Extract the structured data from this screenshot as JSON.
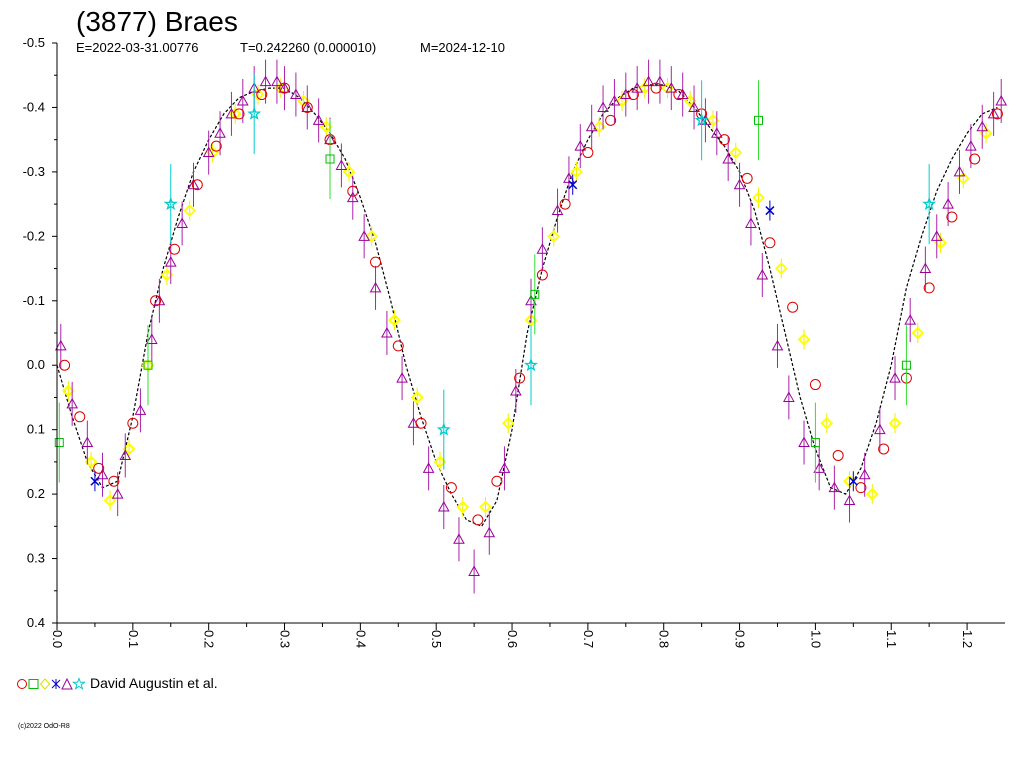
{
  "chart_data": {
    "type": "scatter",
    "title": "(3877) Braes",
    "epoch_text": "E=2022-03-31.00776",
    "period_text": "T=0.242260 (0.000010)",
    "modified_text": "M=2024-12-10",
    "xlim": [
      0.0,
      1.25
    ],
    "ylim": [
      0.4,
      -0.5
    ],
    "y_inverted": true,
    "x_ticks": [
      "0.0",
      "0.1",
      "0.2",
      "0.3",
      "0.4",
      "0.5",
      "0.6",
      "0.7",
      "0.8",
      "0.9",
      "1.0",
      "1.1",
      "1.2"
    ],
    "y_ticks": [
      "-0.5",
      "-0.4",
      "-0.3",
      "-0.2",
      "-0.1",
      "0.0",
      "0.1",
      "0.2",
      "0.3",
      "0.4"
    ],
    "legend_label": "David Augustin et al.",
    "copyright": "(c)2022 OdO-R8",
    "fit_curve": {
      "x": [
        0.0,
        0.02,
        0.04,
        0.06,
        0.08,
        0.1,
        0.12,
        0.14,
        0.16,
        0.18,
        0.2,
        0.22,
        0.24,
        0.26,
        0.28,
        0.3,
        0.32,
        0.34,
        0.36,
        0.38,
        0.4,
        0.42,
        0.44,
        0.46,
        0.48,
        0.5,
        0.52,
        0.54,
        0.56,
        0.58,
        0.6,
        0.62,
        0.64,
        0.66,
        0.68,
        0.7,
        0.72,
        0.74,
        0.76,
        0.78,
        0.8,
        0.82,
        0.84,
        0.86,
        0.88,
        0.9,
        0.92,
        0.94,
        0.96,
        0.98,
        1.0,
        1.02,
        1.04,
        1.06,
        1.08,
        1.1,
        1.12,
        1.14,
        1.16,
        1.18,
        1.2,
        1.22,
        1.24
      ],
      "y": [
        0.0,
        0.08,
        0.15,
        0.19,
        0.18,
        0.08,
        -0.05,
        -0.15,
        -0.23,
        -0.3,
        -0.35,
        -0.39,
        -0.415,
        -0.425,
        -0.43,
        -0.43,
        -0.415,
        -0.39,
        -0.36,
        -0.32,
        -0.26,
        -0.19,
        -0.1,
        0.0,
        0.08,
        0.15,
        0.2,
        0.24,
        0.25,
        0.21,
        0.1,
        -0.05,
        -0.15,
        -0.23,
        -0.3,
        -0.35,
        -0.39,
        -0.415,
        -0.43,
        -0.435,
        -0.435,
        -0.425,
        -0.4,
        -0.37,
        -0.34,
        -0.3,
        -0.24,
        -0.15,
        -0.05,
        0.05,
        0.13,
        0.19,
        0.2,
        0.16,
        0.09,
        0.0,
        -0.12,
        -0.2,
        -0.27,
        -0.32,
        -0.36,
        -0.39,
        -0.4
      ]
    },
    "series": [
      {
        "marker": "triangle",
        "color": "#990099",
        "x": [
          0.005,
          0.02,
          0.04,
          0.06,
          0.08,
          0.09,
          0.11,
          0.125,
          0.135,
          0.15,
          0.165,
          0.18,
          0.2,
          0.215,
          0.23,
          0.245,
          0.26,
          0.275,
          0.29,
          0.3,
          0.315,
          0.33,
          0.345,
          0.36,
          0.375,
          0.39,
          0.405,
          0.42,
          0.435,
          0.455,
          0.47,
          0.49,
          0.51,
          0.53,
          0.55,
          0.57,
          0.59,
          0.605,
          0.625,
          0.64,
          0.66,
          0.675,
          0.69,
          0.705,
          0.72,
          0.735,
          0.75,
          0.765,
          0.78,
          0.795,
          0.81,
          0.825,
          0.84,
          0.855,
          0.87,
          0.885,
          0.9,
          0.915,
          0.93,
          0.95,
          0.965,
          0.985,
          1.005,
          1.025,
          1.045,
          1.065,
          1.085,
          1.105,
          1.125,
          1.145,
          1.16,
          1.175,
          1.19,
          1.205,
          1.22,
          1.235,
          1.245
        ],
        "y": [
          -0.03,
          0.06,
          0.12,
          0.17,
          0.2,
          0.14,
          0.07,
          -0.04,
          -0.1,
          -0.16,
          -0.22,
          -0.28,
          -0.33,
          -0.36,
          -0.39,
          -0.41,
          -0.43,
          -0.44,
          -0.44,
          -0.43,
          -0.42,
          -0.4,
          -0.38,
          -0.35,
          -0.31,
          -0.26,
          -0.2,
          -0.12,
          -0.05,
          0.02,
          0.09,
          0.16,
          0.22,
          0.27,
          0.32,
          0.26,
          0.16,
          0.04,
          -0.1,
          -0.18,
          -0.24,
          -0.29,
          -0.34,
          -0.37,
          -0.4,
          -0.41,
          -0.42,
          -0.43,
          -0.44,
          -0.44,
          -0.43,
          -0.42,
          -0.4,
          -0.38,
          -0.36,
          -0.32,
          -0.28,
          -0.22,
          -0.14,
          -0.03,
          0.05,
          0.12,
          0.16,
          0.19,
          0.21,
          0.17,
          0.1,
          0.02,
          -0.07,
          -0.15,
          -0.2,
          -0.25,
          -0.3,
          -0.34,
          -0.37,
          -0.39,
          -0.41
        ]
      },
      {
        "marker": "circle",
        "color": "#dd0000",
        "x": [
          0.01,
          0.03,
          0.055,
          0.075,
          0.1,
          0.13,
          0.155,
          0.185,
          0.21,
          0.24,
          0.27,
          0.3,
          0.33,
          0.36,
          0.39,
          0.42,
          0.45,
          0.48,
          0.52,
          0.555,
          0.58,
          0.61,
          0.64,
          0.67,
          0.7,
          0.73,
          0.76,
          0.79,
          0.82,
          0.85,
          0.88,
          0.91,
          0.94,
          0.97,
          1.0,
          1.03,
          1.06,
          1.09,
          1.12,
          1.15,
          1.18,
          1.21,
          1.24
        ],
        "y": [
          0.0,
          0.08,
          0.16,
          0.18,
          0.09,
          -0.1,
          -0.18,
          -0.28,
          -0.34,
          -0.39,
          -0.42,
          -0.43,
          -0.4,
          -0.35,
          -0.27,
          -0.16,
          -0.03,
          0.09,
          0.19,
          0.24,
          0.18,
          0.02,
          -0.14,
          -0.25,
          -0.33,
          -0.38,
          -0.42,
          -0.43,
          -0.42,
          -0.39,
          -0.35,
          -0.29,
          -0.19,
          -0.09,
          0.03,
          0.14,
          0.19,
          0.13,
          0.02,
          -0.12,
          -0.23,
          -0.32,
          -0.39
        ]
      },
      {
        "marker": "diamond",
        "color": "#ffff00",
        "x": [
          0.015,
          0.045,
          0.07,
          0.095,
          0.12,
          0.145,
          0.175,
          0.205,
          0.235,
          0.265,
          0.295,
          0.325,
          0.355,
          0.385,
          0.415,
          0.445,
          0.475,
          0.505,
          0.535,
          0.565,
          0.595,
          0.625,
          0.655,
          0.685,
          0.715,
          0.745,
          0.775,
          0.805,
          0.835,
          0.865,
          0.895,
          0.925,
          0.955,
          0.985,
          1.015,
          1.045,
          1.075,
          1.105,
          1.135,
          1.165,
          1.195,
          1.225
        ],
        "y": [
          0.04,
          0.15,
          0.21,
          0.13,
          0.0,
          -0.14,
          -0.24,
          -0.33,
          -0.39,
          -0.42,
          -0.43,
          -0.41,
          -0.37,
          -0.3,
          -0.2,
          -0.07,
          0.05,
          0.15,
          0.22,
          0.22,
          0.09,
          -0.07,
          -0.2,
          -0.3,
          -0.37,
          -0.41,
          -0.43,
          -0.43,
          -0.41,
          -0.38,
          -0.33,
          -0.26,
          -0.15,
          -0.04,
          0.09,
          0.18,
          0.2,
          0.09,
          -0.05,
          -0.19,
          -0.29,
          -0.36
        ]
      },
      {
        "marker": "square",
        "color": "#00bb00",
        "x": [
          0.003,
          0.12,
          0.36,
          0.63,
          0.925,
          1.0,
          1.12
        ],
        "y": [
          0.12,
          0.0,
          -0.32,
          -0.11,
          -0.38,
          0.12,
          0.0
        ]
      },
      {
        "marker": "cross",
        "color": "#0000cc",
        "x": [
          0.05,
          0.68,
          0.94,
          1.05
        ],
        "y": [
          0.18,
          -0.28,
          -0.24,
          0.18
        ]
      },
      {
        "marker": "star",
        "color": "#00cccc",
        "x": [
          0.15,
          0.26,
          0.51,
          0.625,
          0.85,
          1.15
        ],
        "y": [
          -0.25,
          -0.39,
          0.1,
          0.0,
          -0.38,
          -0.25
        ]
      }
    ]
  }
}
